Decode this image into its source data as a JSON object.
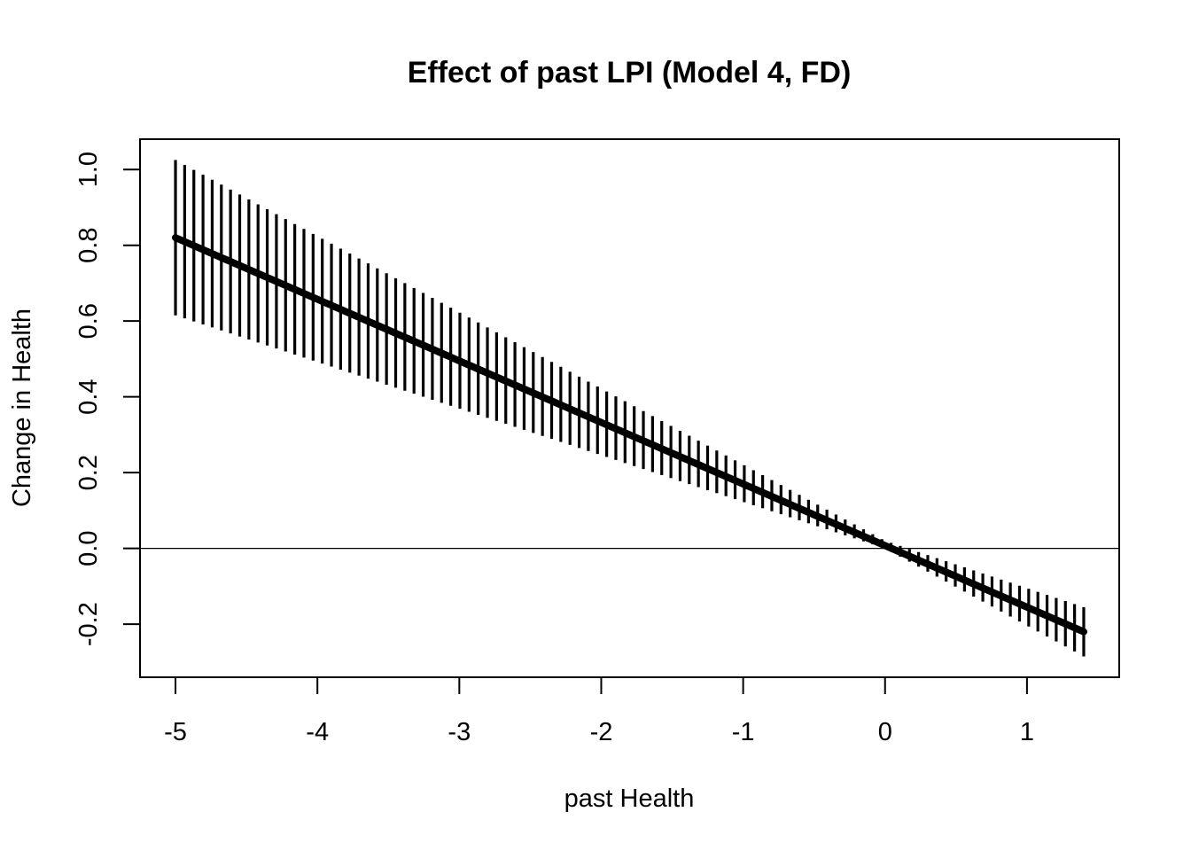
{
  "chart_data": {
    "type": "line",
    "title": "Effect of past LPI (Model 4, FD)",
    "xlabel": "past Health",
    "ylabel": "Change in Health",
    "xlim": [
      -5.25,
      1.65
    ],
    "ylim": [
      -0.34,
      1.08
    ],
    "x_ticks": [
      -5,
      -4,
      -3,
      -2,
      -1,
      0,
      1
    ],
    "x_tick_labels": [
      "-5",
      "-4",
      "-3",
      "-2",
      "-1",
      "0",
      "1"
    ],
    "y_ticks": [
      -0.2,
      0.0,
      0.2,
      0.4,
      0.6,
      0.8,
      1.0
    ],
    "y_tick_labels": [
      "-0.2",
      "0.0",
      "0.2",
      "0.4",
      "0.6",
      "0.8",
      "1.0"
    ],
    "reference_line_y": 0.0,
    "series": [
      {
        "style": "thick line with vertical confidence-interval segments",
        "x_range": [
          -5.0,
          1.4
        ],
        "n_points": 100,
        "estimate_at_start": 0.82,
        "estimate_at_end": -0.22,
        "ci_lower_at_start": 0.615,
        "ci_upper_at_start": 1.025,
        "ci_lower_at_zero": 0.0,
        "ci_upper_at_zero": 0.02,
        "ci_lower_at_end": -0.285,
        "ci_upper_at_end": -0.155
      }
    ],
    "grid": false,
    "legend": "none"
  }
}
